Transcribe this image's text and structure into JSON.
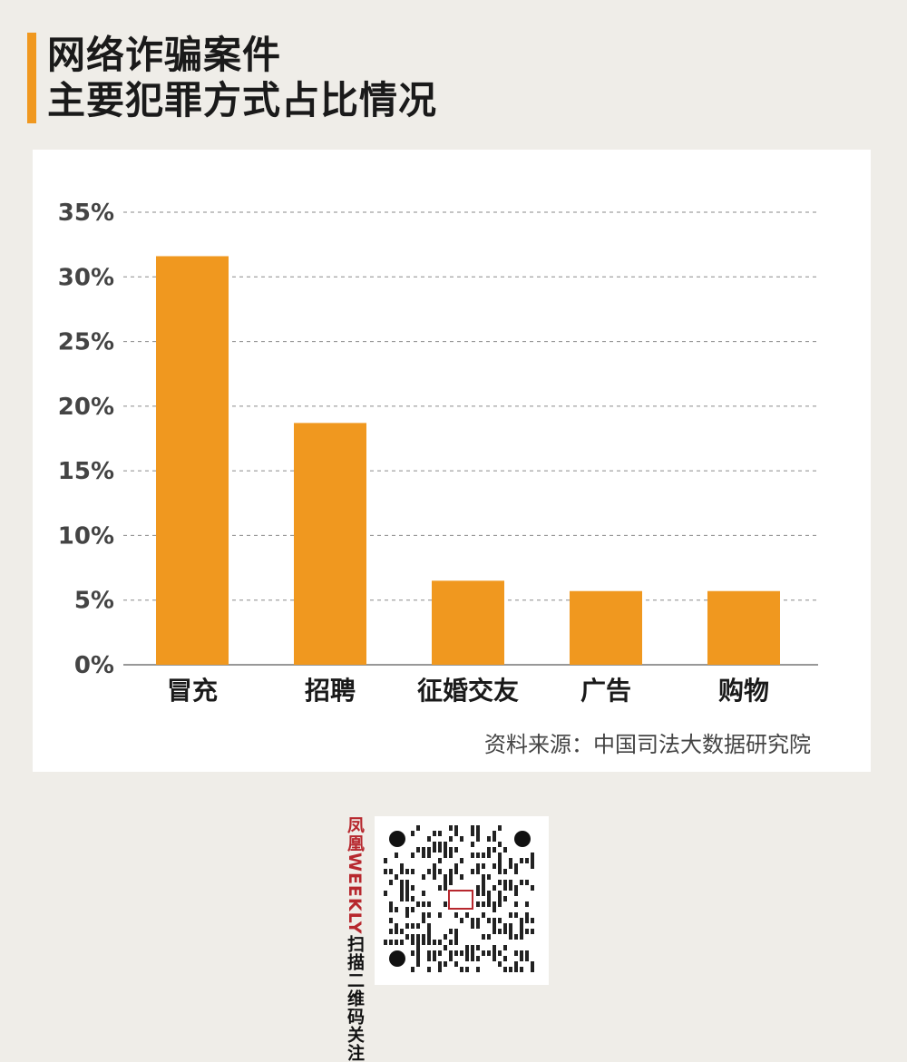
{
  "title": {
    "line1": "网络诈骗案件",
    "line2": "主要犯罪方式占比情况"
  },
  "colors": {
    "accent": "#f0981f",
    "background": "#efede8",
    "card": "#ffffff",
    "bar": "#f0981f",
    "brand_red": "#b7282e"
  },
  "chart_data": {
    "type": "bar",
    "categories": [
      "冒充",
      "招聘",
      "征婚交友",
      "广告",
      "购物"
    ],
    "values": [
      31.6,
      18.7,
      6.5,
      5.7,
      5.7
    ],
    "ylim": [
      0,
      35
    ],
    "yticks": [
      0,
      5,
      10,
      15,
      20,
      25,
      30,
      35
    ],
    "ytick_labels": [
      "0%",
      "5%",
      "10%",
      "15%",
      "20%",
      "25%",
      "30%",
      "35%"
    ],
    "grid": true,
    "title": "",
    "xlabel": "",
    "ylabel": ""
  },
  "source": "资料来源：中国司法大数据研究院",
  "qr": {
    "brand_text": "凤凰WEEKLY",
    "scan_text": "扫描二维码关注",
    "icon": "qr-code-icon"
  }
}
